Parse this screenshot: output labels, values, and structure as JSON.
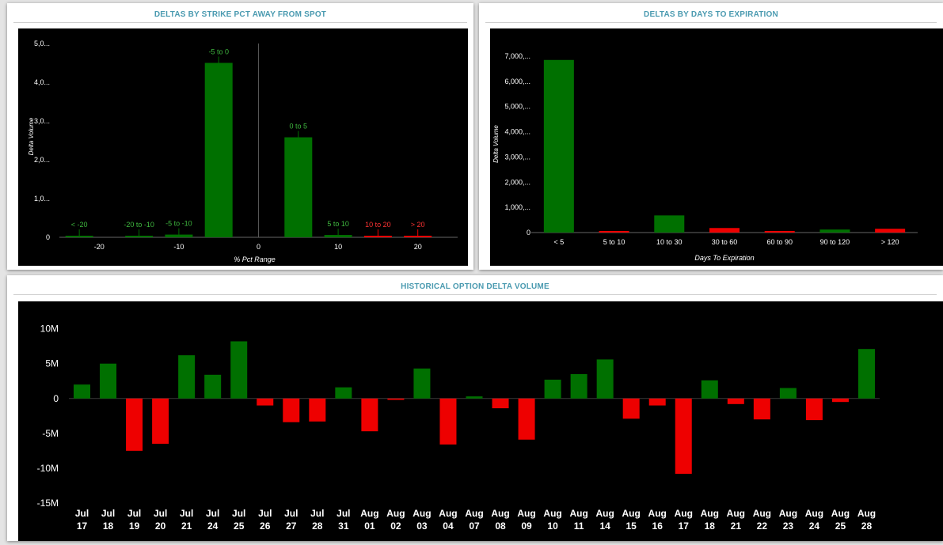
{
  "panels": {
    "strike": {
      "title": "DELTAS BY STRIKE PCT AWAY FROM SPOT"
    },
    "expiration": {
      "title": "DELTAS BY DAYS TO EXPIRATION"
    },
    "historical": {
      "title": "HISTORICAL OPTION DELTA VOLUME"
    }
  },
  "colors": {
    "positive": "#007000",
    "negative": "#ee0000",
    "panel_title": "#4a9ab0"
  },
  "chart_data": [
    {
      "id": "strike",
      "type": "bar",
      "xlabel": "% Pct Range",
      "ylabel": "Delta Volume",
      "ylim": [
        0,
        5000
      ],
      "xlim": [
        -25,
        25
      ],
      "yticks": [
        {
          "value": 0,
          "label": "0"
        },
        {
          "value": 1000,
          "label": "1,0..."
        },
        {
          "value": 2000,
          "label": "2,0..."
        },
        {
          "value": 3000,
          "label": "3,0..."
        },
        {
          "value": 4000,
          "label": "4,0..."
        },
        {
          "value": 5000,
          "label": "5,0..."
        }
      ],
      "xticks": [
        {
          "value": -20,
          "label": "-20"
        },
        {
          "value": -10,
          "label": "-10"
        },
        {
          "value": 0,
          "label": "0"
        },
        {
          "value": 10,
          "label": "10"
        },
        {
          "value": 20,
          "label": "20"
        }
      ],
      "bars": [
        {
          "label": "< -20",
          "center": -22.5,
          "value": 30,
          "sign": "positive"
        },
        {
          "label": "-20 to -10",
          "center": -15,
          "value": 30,
          "sign": "positive"
        },
        {
          "label": "-5 to -10",
          "center": -10,
          "value": 70,
          "sign": "positive"
        },
        {
          "label": "-5 to 0",
          "center": -5,
          "value": 4500,
          "sign": "positive"
        },
        {
          "label": "0 to 5",
          "center": 5,
          "value": 2580,
          "sign": "positive"
        },
        {
          "label": "5 to 10",
          "center": 10,
          "value": 60,
          "sign": "positive"
        },
        {
          "label": "10 to 20",
          "center": 15,
          "value": 30,
          "sign": "negative"
        },
        {
          "label": "> 20",
          "center": 20,
          "value": 20,
          "sign": "negative"
        }
      ]
    },
    {
      "id": "expiration",
      "type": "bar",
      "xlabel": "Days To Expiration",
      "ylabel": "Delta Volume",
      "ylim": [
        0,
        7000
      ],
      "yticks": [
        {
          "value": 0,
          "label": "0"
        },
        {
          "value": 1000,
          "label": "1,000,..."
        },
        {
          "value": 2000,
          "label": "2,000,..."
        },
        {
          "value": 3000,
          "label": "3,000,..."
        },
        {
          "value": 4000,
          "label": "4,000,..."
        },
        {
          "value": 5000,
          "label": "5,000,..."
        },
        {
          "value": 6000,
          "label": "6,000,..."
        },
        {
          "value": 7000,
          "label": "7,000,..."
        }
      ],
      "categories": [
        "< 5",
        "5 to 10",
        "10 to 30",
        "30 to 60",
        "60 to 90",
        "90 to 120",
        "> 120"
      ],
      "values": [
        6850,
        60,
        680,
        180,
        50,
        120,
        150
      ],
      "signs": [
        "positive",
        "negative",
        "positive",
        "negative",
        "negative",
        "positive",
        "negative"
      ]
    },
    {
      "id": "historical",
      "type": "bar",
      "ylim": [
        -15,
        12
      ],
      "yticks": [
        {
          "value": 10,
          "label": "10M"
        },
        {
          "value": 5,
          "label": "5M"
        },
        {
          "value": 0,
          "label": "0"
        },
        {
          "value": -5,
          "label": "-5M"
        },
        {
          "value": -10,
          "label": "-10M"
        },
        {
          "value": -15,
          "label": "-15M"
        }
      ],
      "categories": [
        {
          "month": "Jul",
          "day": "17"
        },
        {
          "month": "Jul",
          "day": "18"
        },
        {
          "month": "Jul",
          "day": "19"
        },
        {
          "month": "Jul",
          "day": "20"
        },
        {
          "month": "Jul",
          "day": "21"
        },
        {
          "month": "Jul",
          "day": "24"
        },
        {
          "month": "Jul",
          "day": "25"
        },
        {
          "month": "Jul",
          "day": "26"
        },
        {
          "month": "Jul",
          "day": "27"
        },
        {
          "month": "Jul",
          "day": "28"
        },
        {
          "month": "Jul",
          "day": "31"
        },
        {
          "month": "Aug",
          "day": "01"
        },
        {
          "month": "Aug",
          "day": "02"
        },
        {
          "month": "Aug",
          "day": "03"
        },
        {
          "month": "Aug",
          "day": "04"
        },
        {
          "month": "Aug",
          "day": "07"
        },
        {
          "month": "Aug",
          "day": "08"
        },
        {
          "month": "Aug",
          "day": "09"
        },
        {
          "month": "Aug",
          "day": "10"
        },
        {
          "month": "Aug",
          "day": "11"
        },
        {
          "month": "Aug",
          "day": "14"
        },
        {
          "month": "Aug",
          "day": "15"
        },
        {
          "month": "Aug",
          "day": "16"
        },
        {
          "month": "Aug",
          "day": "17"
        },
        {
          "month": "Aug",
          "day": "18"
        },
        {
          "month": "Aug",
          "day": "21"
        },
        {
          "month": "Aug",
          "day": "22"
        },
        {
          "month": "Aug",
          "day": "23"
        },
        {
          "month": "Aug",
          "day": "24"
        },
        {
          "month": "Aug",
          "day": "25"
        },
        {
          "month": "Aug",
          "day": "28"
        }
      ],
      "values": [
        2.0,
        5.0,
        -7.5,
        -6.5,
        6.2,
        3.4,
        8.2,
        -1.0,
        -3.4,
        -3.3,
        1.6,
        -4.7,
        -0.2,
        4.3,
        -6.6,
        0.3,
        -1.4,
        -5.9,
        2.7,
        3.5,
        5.6,
        -2.9,
        -1.0,
        -10.8,
        2.6,
        -0.8,
        -3.0,
        1.5,
        -3.1,
        -0.5,
        7.1
      ]
    }
  ]
}
